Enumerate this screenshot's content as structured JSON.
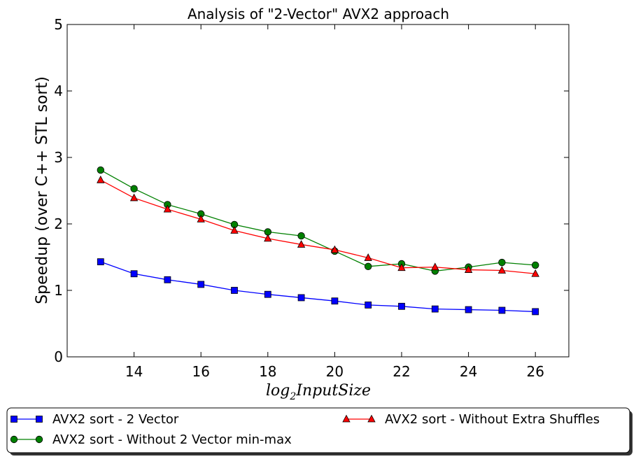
{
  "chart_data": {
    "type": "line",
    "title": "Analysis of \"2-Vector\" AVX2 approach",
    "xlabel_base": "log",
    "xlabel_sub": "2",
    "xlabel_rest": "InputSize",
    "ylabel": "Speedup (over C++ STL sort)",
    "xlim": [
      12,
      27
    ],
    "ylim": [
      0,
      5
    ],
    "xticks": [
      "14",
      "16",
      "18",
      "20",
      "22",
      "24",
      "26"
    ],
    "yticks": [
      "0",
      "1",
      "2",
      "3",
      "4",
      "5"
    ],
    "x": [
      13,
      14,
      15,
      16,
      17,
      18,
      19,
      20,
      21,
      22,
      23,
      24,
      25,
      26
    ],
    "series": [
      {
        "name": "AVX2 sort - 2 Vector",
        "color": "#0000ff",
        "marker": "square",
        "values": [
          1.43,
          1.25,
          1.16,
          1.09,
          1.0,
          0.94,
          0.89,
          0.84,
          0.78,
          0.76,
          0.72,
          0.71,
          0.7,
          0.68
        ]
      },
      {
        "name": "AVX2 sort - Without 2 Vector min-max",
        "color": "#008000",
        "marker": "circle",
        "values": [
          2.81,
          2.53,
          2.29,
          2.15,
          1.99,
          1.88,
          1.82,
          1.59,
          1.36,
          1.4,
          1.29,
          1.35,
          1.42,
          1.38
        ]
      },
      {
        "name": "AVX2 sort - Without Extra Shuffles",
        "color": "#ff0000",
        "marker": "triangle",
        "values": [
          2.66,
          2.39,
          2.22,
          2.07,
          1.9,
          1.78,
          1.69,
          1.61,
          1.49,
          1.34,
          1.35,
          1.31,
          1.3,
          1.25
        ]
      }
    ],
    "legend": "bottom-outside"
  }
}
